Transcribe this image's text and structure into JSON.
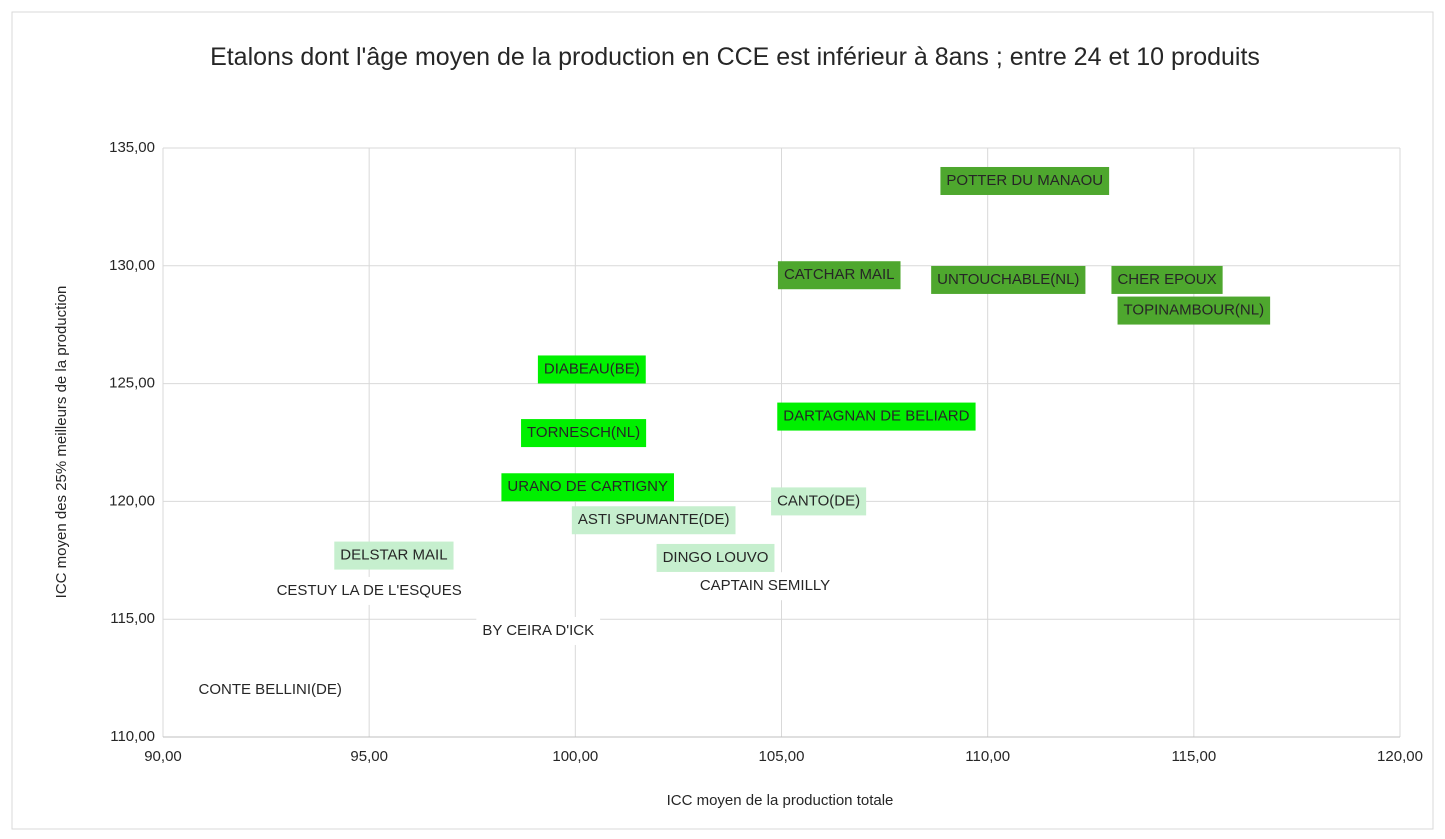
{
  "chart_data": {
    "type": "scatter",
    "title": "Etalons dont l'âge moyen de la production en CCE est inférieur à 8ans ; entre 24 et 10 produits",
    "x_label": "ICC moyen de la production totale",
    "y_label": "ICC moyen des 25% meilleurs de la production",
    "xlim": [
      90,
      120
    ],
    "xticks": [
      {
        "value": 90,
        "label": "90,00"
      },
      {
        "value": 95,
        "label": "95,00"
      },
      {
        "value": 100,
        "label": "100,00"
      },
      {
        "value": 105,
        "label": "105,00"
      },
      {
        "value": 110,
        "label": "110,00"
      },
      {
        "value": 115,
        "label": "115,00"
      },
      {
        "value": 120,
        "label": "120,00"
      }
    ],
    "ylim": [
      110,
      135
    ],
    "yticks": [
      {
        "value": 110,
        "label": "110,00"
      },
      {
        "value": 115,
        "label": "115,00"
      },
      {
        "value": 120,
        "label": "120,00"
      },
      {
        "value": 125,
        "label": "125,00"
      },
      {
        "value": 130,
        "label": "130,00"
      },
      {
        "value": 135,
        "label": "135,00"
      }
    ],
    "grid": true,
    "labels": [
      "POTTER DU MANAOU",
      "CATCHAR MAIL",
      "UNTOUCHABLE(NL)",
      "CHER EPOUX",
      "TOPINAMBOUR(NL)",
      "DIABEAU(BE)",
      "DARTAGNAN DE BELIARD",
      "TORNESCH(NL)",
      "URANO DE CARTIGNY",
      "CANTO(DE)",
      "ASTI SPUMANTE(DE)",
      "DINGO LOUVO",
      "DELSTAR MAIL",
      "CESTUY LA DE L'ESQUES",
      "CAPTAIN SEMILLY",
      "BY CEIRA D'ICK",
      "CONTE BELLINI(DE)"
    ],
    "x": [
      110.9,
      106.4,
      110.5,
      114.35,
      115.0,
      100.4,
      107.3,
      100.2,
      100.3,
      105.9,
      101.9,
      103.4,
      95.6,
      95.0,
      104.6,
      99.1,
      92.6
    ],
    "values": [
      133.6,
      129.6,
      129.4,
      129.4,
      128.1,
      125.6,
      123.6,
      122.9,
      120.6,
      120.0,
      119.2,
      117.6,
      117.7,
      116.2,
      116.4,
      114.5,
      112.0
    ],
    "colors": [
      "#4ea72e",
      "#4ea72e",
      "#4ea72e",
      "#4ea72e",
      "#4ea72e",
      "#00f000",
      "#00f000",
      "#00f000",
      "#00f000",
      "#c6efce",
      "#c6efce",
      "#c6efce",
      "#c6efce",
      "#ffffff",
      "#ffffff",
      "#ffffff",
      "#ffffff"
    ]
  }
}
